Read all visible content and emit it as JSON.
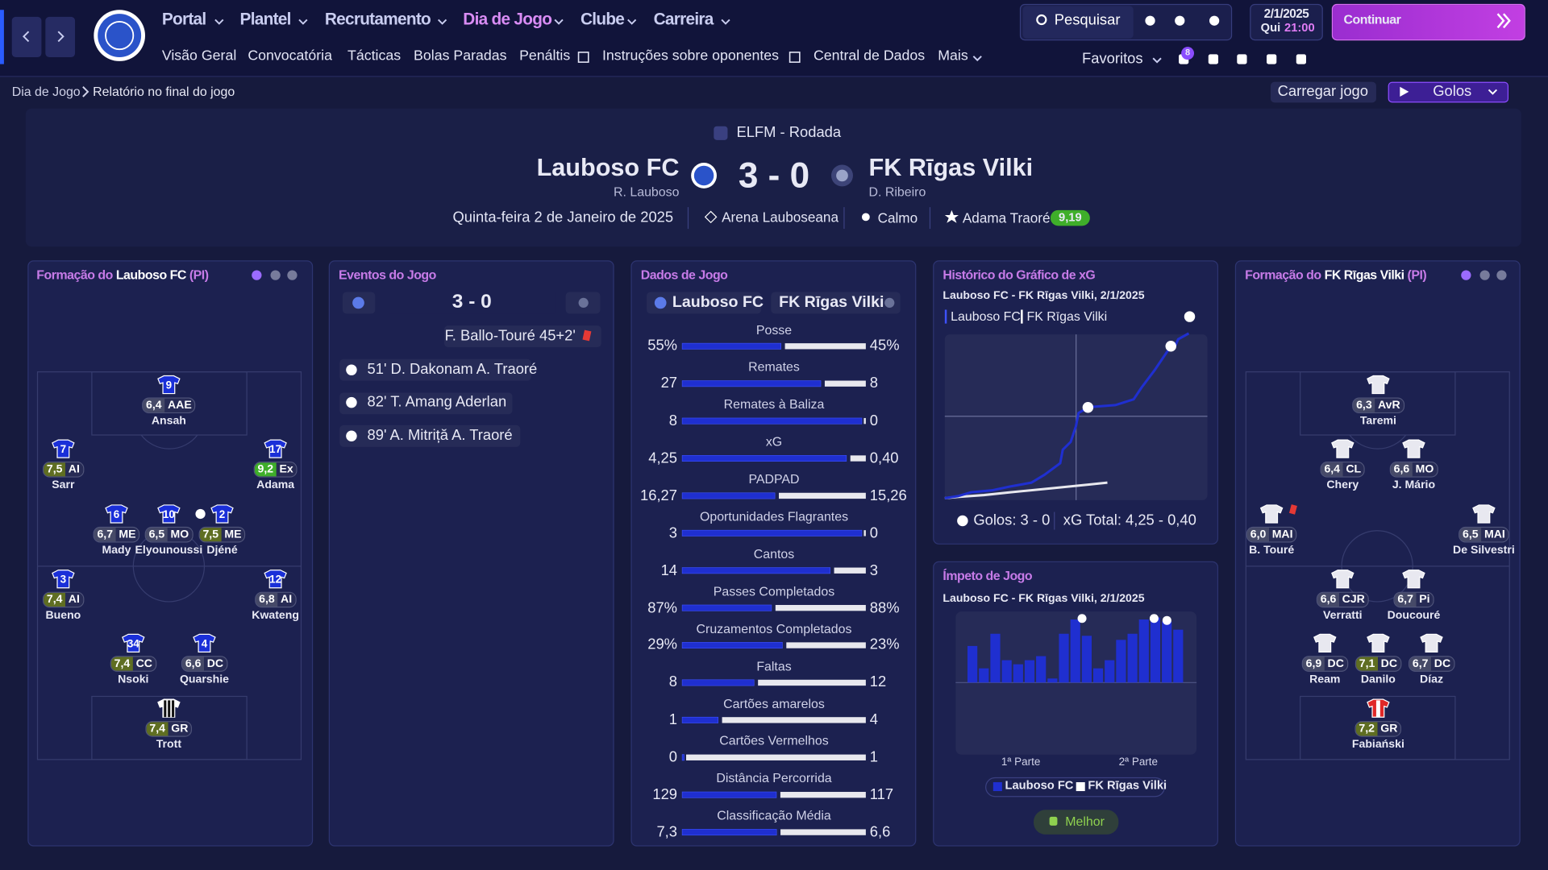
{
  "nav": {
    "menus": [
      "Portal",
      "Plantel",
      "Recrutamento",
      "Dia de Jogo",
      "Clube",
      "Carreira"
    ],
    "submenus": [
      "Visão Geral",
      "Convocatória",
      "Tácticas",
      "Bolas Paradas",
      "Penáltis",
      "Instruções sobre oponentes",
      "Central de Dados",
      "Mais"
    ],
    "search": "Pesquisar",
    "date": "2/1/2025",
    "day": "Qui",
    "time": "21:00",
    "continue": "Continuar",
    "favorites": "Favoritos",
    "badge": "8"
  },
  "breadcrumb": [
    "Dia de Jogo",
    "Relatório no final do jogo"
  ],
  "actions": {
    "load": "Carregar jogo",
    "goals": "Golos"
  },
  "match": {
    "competition": "ELFM - Rodada",
    "home": "Lauboso FC",
    "home_manager": "R. Lauboso",
    "score": "3 - 0",
    "away": "FK Rīgas Vilki",
    "away_manager": "D. Ribeiro",
    "date": "Quinta-feira 2 de Janeiro de 2025",
    "stadium": "Arena Lauboseana",
    "weather": "Calmo",
    "potm": "Adama Traoré",
    "potm_rating": "9,19"
  },
  "home_formation": {
    "label": "Formação do",
    "tag": "(PI)",
    "players": [
      {
        "number": "9",
        "rating": "6,4",
        "position": "AAE",
        "name": "Ansah"
      },
      {
        "number": "7",
        "rating": "7,5",
        "position": "AI",
        "name": "Sarr"
      },
      {
        "number": "17",
        "rating": "9,2",
        "position": "Ex",
        "name": "Adama"
      },
      {
        "number": "6",
        "rating": "6,7",
        "position": "ME",
        "name": "Mady"
      },
      {
        "number": "10",
        "rating": "6,5",
        "position": "MO",
        "name": "Elyounoussi"
      },
      {
        "number": "2",
        "rating": "7,5",
        "position": "ME",
        "name": "Djéné"
      },
      {
        "number": "3",
        "rating": "7,4",
        "position": "AI",
        "name": "Bueno"
      },
      {
        "number": "12",
        "rating": "6,8",
        "position": "AI",
        "name": "Kwateng"
      },
      {
        "number": "34",
        "rating": "7,4",
        "position": "CC",
        "name": "Nsoki"
      },
      {
        "number": "4",
        "rating": "6,6",
        "position": "DC",
        "name": "Quarshie"
      },
      {
        "rating": "7,4",
        "position": "GR",
        "name": "Trott"
      }
    ]
  },
  "away_formation": {
    "label": "Formação do",
    "tag": "(PI)",
    "players": [
      {
        "rating": "6,3",
        "position": "AvR",
        "name": "Taremi"
      },
      {
        "rating": "6,4",
        "position": "CL",
        "name": "Chery"
      },
      {
        "rating": "6,6",
        "position": "MO",
        "name": "J. Mário"
      },
      {
        "rating": "6,0",
        "position": "MAI",
        "name": "B. Touré"
      },
      {
        "rating": "6,5",
        "position": "MAI",
        "name": "De Silvestri"
      },
      {
        "rating": "6,6",
        "position": "CJR",
        "name": "Verratti"
      },
      {
        "rating": "6,7",
        "position": "Pi",
        "name": "Doucouré"
      },
      {
        "rating": "6,9",
        "position": "DC",
        "name": "Ream"
      },
      {
        "rating": "7,1",
        "position": "DC",
        "name": "Danilo"
      },
      {
        "rating": "6,7",
        "position": "DC",
        "name": "Díaz"
      },
      {
        "rating": "7,2",
        "position": "GR",
        "name": "Fabiański"
      }
    ]
  },
  "events": {
    "title": "Eventos do Jogo",
    "red_card": "F. Ballo-Touré 45+2'",
    "goals": [
      "51' D. Dakonam A. Traoré",
      "82' T. Amang Aderlan",
      "89' A. Mitriță A. Traoré"
    ]
  },
  "stats": {
    "title": "Dados de Jogo",
    "rows": [
      {
        "label": "Posse",
        "home": "55%",
        "away": "45%"
      },
      {
        "label": "Remates",
        "home": "27",
        "away": "8"
      },
      {
        "label": "Remates à Baliza",
        "home": "8",
        "away": "0"
      },
      {
        "label": "xG",
        "home": "4,25",
        "away": "0,40"
      },
      {
        "label": "PADPAD",
        "home": "16,27",
        "away": "15,26"
      },
      {
        "label": "Oportunidades Flagrantes",
        "home": "3",
        "away": "0"
      },
      {
        "label": "Cantos",
        "home": "14",
        "away": "3"
      },
      {
        "label": "Passes Completados",
        "home": "87%",
        "away": "88%"
      },
      {
        "label": "Cruzamentos Completados",
        "home": "29%",
        "away": "23%"
      },
      {
        "label": "Faltas",
        "home": "8",
        "away": "12"
      },
      {
        "label": "Cartões amarelos",
        "home": "1",
        "away": "4"
      },
      {
        "label": "Cartões Vermelhos",
        "home": "0",
        "away": "1"
      },
      {
        "label": "Distância Percorrida",
        "home": "129",
        "away": "117"
      },
      {
        "label": "Classificação Média",
        "home": "7,3",
        "away": "6,6"
      }
    ]
  },
  "xg_chart": {
    "title": "Histórico do Gráfico de xG",
    "subtitle": "Lauboso FC - FK Rīgas Vilki, 2/1/2025",
    "home_minutes": [
      0,
      5,
      10,
      18,
      25,
      33,
      38,
      44,
      45,
      48,
      50,
      51,
      55,
      65,
      72,
      75,
      80,
      82,
      85,
      88,
      89,
      93
    ],
    "home_xg": [
      0,
      0.05,
      0.15,
      0.2,
      0.3,
      0.4,
      0.6,
      0.9,
      1.25,
      1.45,
      1.85,
      2.2,
      2.35,
      2.4,
      2.55,
      2.85,
      3.3,
      3.5,
      3.8,
      3.95,
      4.1,
      4.25
    ],
    "away_minutes": [
      0,
      5,
      15,
      25,
      40,
      55,
      62
    ],
    "away_xg": [
      0,
      0.03,
      0.08,
      0.15,
      0.25,
      0.35,
      0.4
    ],
    "goals_text": "Golos: 3 - 0",
    "xg_total": "xG Total: 4,25 - 0,40"
  },
  "momentum": {
    "title": "Ímpeto de Jogo",
    "subtitle": "Lauboso FC - FK Rīgas Vilki, 2/1/2025",
    "home": [
      36,
      14,
      48,
      22,
      18,
      22,
      26,
      4,
      48,
      62,
      46,
      14,
      22,
      42,
      48,
      62,
      64,
      60,
      52
    ],
    "first_half": "1ª Parte",
    "second_half": "2ª Parte",
    "button": "Melhor"
  }
}
